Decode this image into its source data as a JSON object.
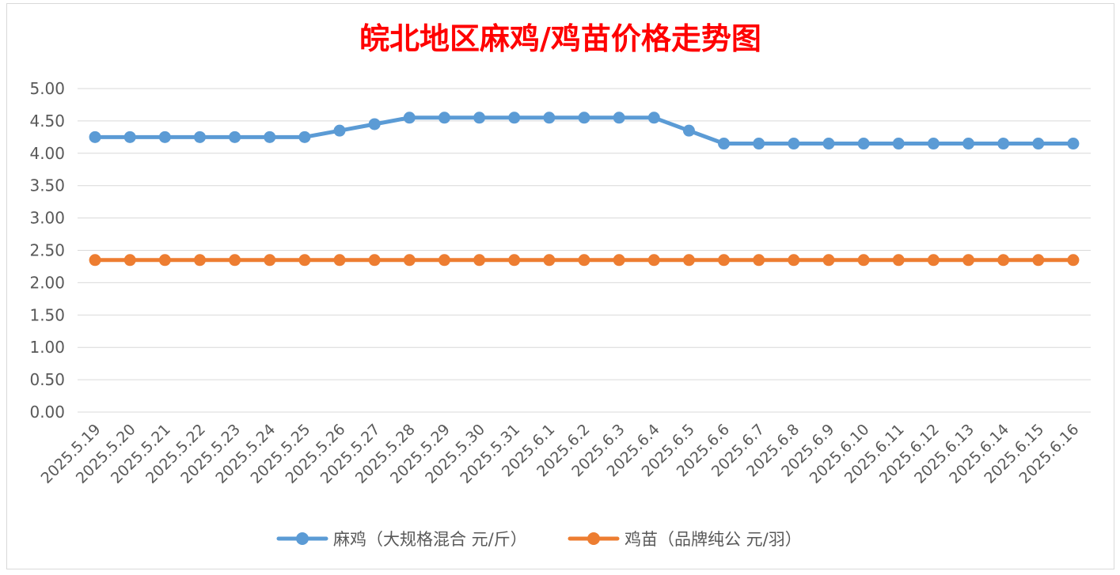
{
  "chart_data": {
    "type": "line",
    "title": "皖北地区麻鸡/鸡苗价格走势图",
    "xlabel": "",
    "ylabel": "",
    "ylim": [
      0,
      5
    ],
    "yticks": [
      "0.00",
      "0.50",
      "1.00",
      "1.50",
      "2.00",
      "2.50",
      "3.00",
      "3.50",
      "4.00",
      "4.50",
      "5.00"
    ],
    "grid": true,
    "legend_position": "bottom",
    "categories": [
      "2025.5.19",
      "2025.5.20",
      "2025.5.21",
      "2025.5.22",
      "2025.5.23",
      "2025.5.24",
      "2025.5.25",
      "2025.5.26",
      "2025.5.27",
      "2025.5.28",
      "2025.5.29",
      "2025.5.30",
      "2025.5.31",
      "2025.6.1",
      "2025.6.2",
      "2025.6.3",
      "2025.6.4",
      "2025.6.5",
      "2025.6.6",
      "2025.6.7",
      "2025.6.8",
      "2025.6.9",
      "2025.6.10",
      "2025.6.11",
      "2025.6.12",
      "2025.6.13",
      "2025.6.14",
      "2025.6.15",
      "2025.6.16"
    ],
    "series": [
      {
        "name": "麻鸡（大规格混合 元/斤）",
        "color": "#5b9bd5",
        "values": [
          4.25,
          4.25,
          4.25,
          4.25,
          4.25,
          4.25,
          4.25,
          4.35,
          4.45,
          4.55,
          4.55,
          4.55,
          4.55,
          4.55,
          4.55,
          4.55,
          4.55,
          4.35,
          4.15,
          4.15,
          4.15,
          4.15,
          4.15,
          4.15,
          4.15,
          4.15,
          4.15,
          4.15,
          4.15
        ]
      },
      {
        "name": "鸡苗（品牌纯公 元/羽）",
        "color": "#ed7d31",
        "values": [
          2.35,
          2.35,
          2.35,
          2.35,
          2.35,
          2.35,
          2.35,
          2.35,
          2.35,
          2.35,
          2.35,
          2.35,
          2.35,
          2.35,
          2.35,
          2.35,
          2.35,
          2.35,
          2.35,
          2.35,
          2.35,
          2.35,
          2.35,
          2.35,
          2.35,
          2.35,
          2.35,
          2.35,
          2.35
        ]
      }
    ]
  }
}
